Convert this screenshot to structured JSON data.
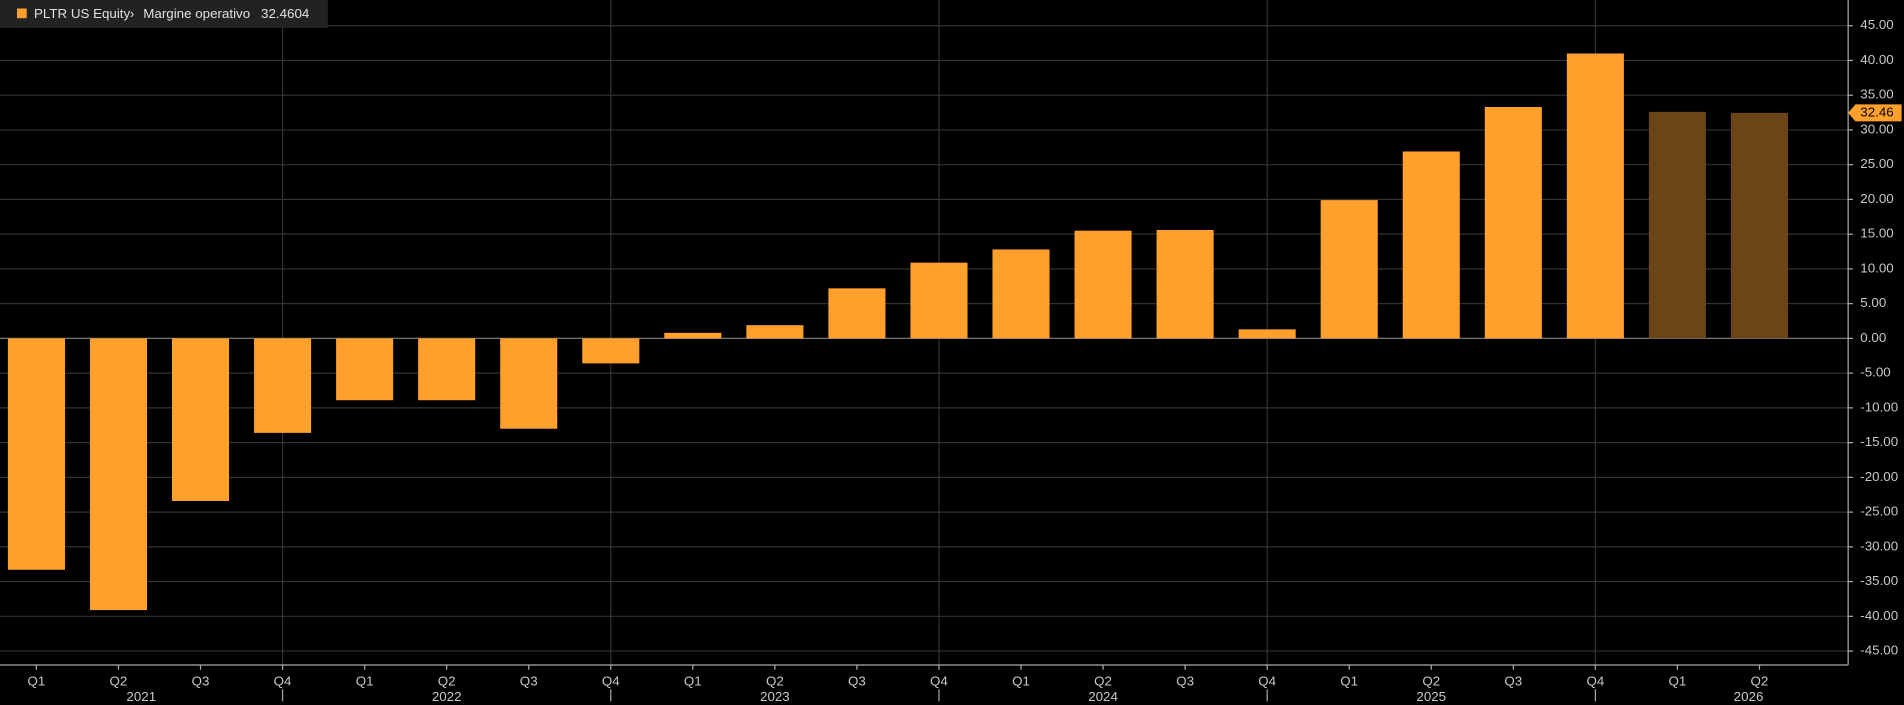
{
  "chart_data": {
    "type": "bar",
    "legend": {
      "ticker": "PLTR US Equity",
      "field": "Margine operativo",
      "last_value": 32.4604
    },
    "categories": [
      "Q1",
      "Q2",
      "Q3",
      "Q4",
      "Q1",
      "Q2",
      "Q3",
      "Q4",
      "Q1",
      "Q2",
      "Q3",
      "Q4",
      "Q1",
      "Q2",
      "Q3",
      "Q4",
      "Q1",
      "Q2",
      "Q3",
      "Q4",
      "Q1",
      "Q2"
    ],
    "years": [
      "2021",
      "2022",
      "2023",
      "2024",
      "2025",
      "2026"
    ],
    "values": [
      -33.3,
      -39.1,
      -23.4,
      -13.6,
      -8.9,
      -8.9,
      -13.0,
      -3.6,
      0.8,
      1.9,
      7.2,
      10.9,
      12.8,
      15.5,
      15.6,
      1.3,
      19.9,
      26.9,
      33.3,
      41.0,
      32.6,
      32.46
    ],
    "value_labels": [
      null,
      null,
      null,
      null,
      null,
      null,
      null,
      null,
      null,
      null,
      null,
      null,
      null,
      null,
      null,
      null,
      null,
      null,
      null,
      null,
      null,
      "32.46"
    ],
    "colors": [
      "#ffa02c",
      "#ffa02c",
      "#ffa02c",
      "#ffa02c",
      "#ffa02c",
      "#ffa02c",
      "#ffa02c",
      "#ffa02c",
      "#ffa02c",
      "#ffa02c",
      "#ffa02c",
      "#ffa02c",
      "#ffa02c",
      "#ffa02c",
      "#ffa02c",
      "#ffa02c",
      "#ffa02c",
      "#ffa02c",
      "#ffa02c",
      "#ffa02c",
      "#6b4418",
      "#6b4418"
    ],
    "ylim": [
      -47,
      48.7
    ],
    "yticks": [
      {
        "value": 45,
        "label": "45.00"
      },
      {
        "value": 40,
        "label": "40.00"
      },
      {
        "value": 35,
        "label": "35.00"
      },
      {
        "value": 30,
        "label": "30.00"
      },
      {
        "value": 25,
        "label": "25.00"
      },
      {
        "value": 20,
        "label": "20.00"
      },
      {
        "value": 15,
        "label": "15.00"
      },
      {
        "value": 10,
        "label": "10.00"
      },
      {
        "value": 5,
        "label": "5.00"
      },
      {
        "value": 0,
        "label": "0.00"
      },
      {
        "value": -5,
        "label": "-5.00"
      },
      {
        "value": -10,
        "label": "-10.00"
      },
      {
        "value": -15,
        "label": "-15.00"
      },
      {
        "value": -20,
        "label": "-20.00"
      },
      {
        "value": -25,
        "label": "-25.00"
      },
      {
        "value": -30,
        "label": "-30.00"
      },
      {
        "value": -35,
        "label": "-35.00"
      },
      {
        "value": -40,
        "label": "-40.00"
      },
      {
        "value": -45,
        "label": "-45.00"
      }
    ],
    "grid": true
  }
}
